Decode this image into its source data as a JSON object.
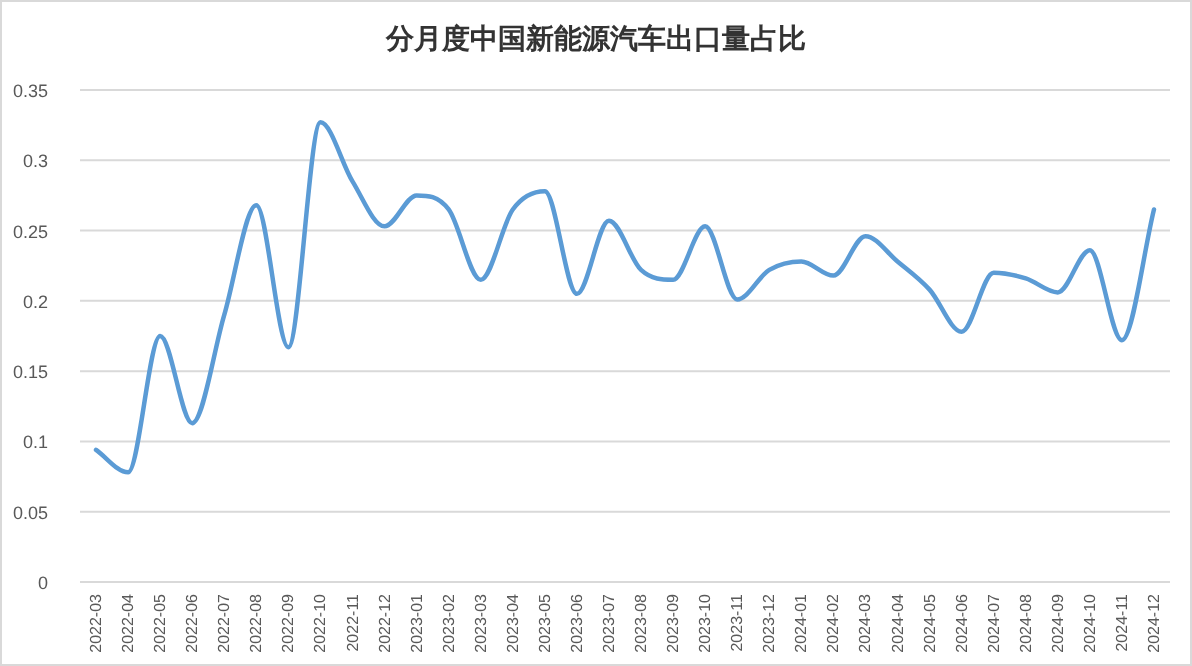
{
  "chart_data": {
    "type": "line",
    "title": "分月度中国新能源汽车出口量占比",
    "categories": [
      "2022-03",
      "2022-04",
      "2022-05",
      "2022-06",
      "2022-07",
      "2022-08",
      "2022-09",
      "2022-10",
      "2022-11",
      "2022-12",
      "2023-01",
      "2023-02",
      "2023-03",
      "2023-04",
      "2023-05",
      "2023-06",
      "2023-07",
      "2023-08",
      "2023-09",
      "2023-10",
      "2023-11",
      "2023-12",
      "2024-01",
      "2024-02",
      "2024-03",
      "2024-04",
      "2024-05",
      "2024-06",
      "2024-07",
      "2024-08",
      "2024-09",
      "2024-10",
      "2024-11",
      "2024-12"
    ],
    "series": [
      {
        "color": "#5b9bd5",
        "values": [
          0.094,
          0.078,
          0.175,
          0.113,
          0.19,
          0.268,
          0.167,
          0.327,
          0.285,
          0.253,
          0.275,
          0.265,
          0.215,
          0.265,
          0.278,
          0.205,
          0.257,
          0.222,
          0.215,
          0.253,
          0.201,
          0.222,
          0.228,
          0.218,
          0.246,
          0.228,
          0.208,
          0.178,
          0.22,
          0.216,
          0.206,
          0.236,
          0.172,
          0.265
        ]
      }
    ],
    "ylim": [
      0,
      0.35
    ],
    "yticks": [
      0,
      0.05,
      0.1,
      0.15,
      0.2,
      0.25,
      0.3,
      0.35
    ],
    "grid": "y",
    "marker": "none",
    "line_style": "solid"
  }
}
